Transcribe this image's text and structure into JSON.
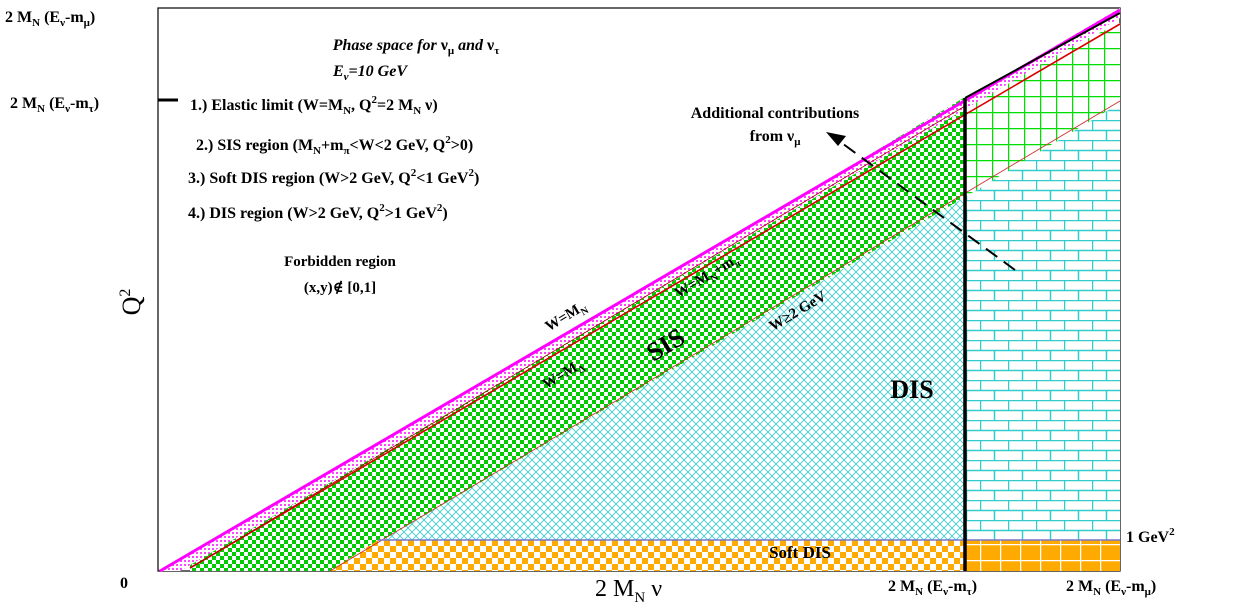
{
  "chart_data": {
    "type": "diagram",
    "title": {
      "line1_pre": "Phase space for ",
      "line1_nu": "ν",
      "line1_mu": "μ",
      "line1_and": " and ",
      "line1_tau": "τ",
      "line2_pre": "E",
      "line2_sub": "ν",
      "line2_post": "=10 GeV"
    },
    "axes": {
      "ylabel_base": "Q",
      "ylabel_sup": "2",
      "xlabel_main": "2 M",
      "xlabel_sub": "N",
      "xlabel_nu": " ν",
      "origin": "0",
      "y_tick_top": {
        "pre": "2 M",
        "sub_n": "N",
        "mid": " (E",
        "sub_nu": "ν",
        "dash": "-m",
        "sub_m": "μ",
        "close": ")"
      },
      "y_tick_tau": {
        "pre": "2 M",
        "sub_n": "N",
        "mid": " (E",
        "sub_nu": "ν",
        "dash": "-m",
        "sub_m": "τ",
        "close": ")"
      },
      "x_tick_tau": {
        "pre": "2 M",
        "sub_n": "N",
        "mid": " (E",
        "sub_nu": "ν",
        "dash": "-m",
        "sub_m": "τ",
        "close": ")"
      },
      "x_tick_mu": {
        "pre": "2 M",
        "sub_n": "N",
        "mid": " (E",
        "sub_nu": "ν",
        "dash": "-m",
        "sub_m": "μ",
        "close": ")"
      },
      "q2_cut_pre": "1 GeV",
      "q2_cut_sup": "2"
    },
    "legend": [
      {
        "a": "1.) Elastic limit (W=M",
        "a_sub": "N",
        "b": ", Q",
        "b_sup": "2",
        "c": "=2 M",
        "c_sub": "N",
        "d": " ν)"
      },
      {
        "a": "2.) SIS region (M",
        "a_sub": "N",
        "b": "+m",
        "b_sub": "π",
        "c": "<W<2 GeV, Q",
        "c_sup": "2",
        "d": ">0)"
      },
      {
        "a": "3.) Soft DIS region (W>2 GeV, Q",
        "a_sup": "2",
        "b": "<1 GeV",
        "b_sup": "2",
        "c": ")"
      },
      {
        "a": "4.) DIS region (W>2 GeV, Q",
        "a_sup": "2",
        "b": ">1 GeV",
        "b_sup": "2",
        "c": ")"
      }
    ],
    "forbidden": {
      "line1": "Forbidden region",
      "line2": "(x,y)∉ [0,1]"
    },
    "additional": {
      "line1": "Additional contributions",
      "line2_pre": "from ν",
      "line2_sub": "μ"
    },
    "regions": {
      "sis": "SIS",
      "dis": "DIS",
      "soft_dis": "Soft DIS"
    },
    "lines": {
      "w_mn": "W=M",
      "w_mn_sub": "N",
      "w_mn_mpi": "W=M",
      "w_mn_mpi_sub1": "N",
      "w_mn_mpi_plus": "+m",
      "w_mn_mpi_sub2": "π",
      "w_delta": "W=M",
      "w_delta_sub": "Δ",
      "w_2gev": "W≥2 GeV"
    },
    "colors": {
      "sis_green": "#00cc00",
      "dis_cyan": "#33cccc",
      "soft_orange": "#ffaa00",
      "elastic_magenta": "#ff00ff",
      "red_line": "#dd0000"
    }
  }
}
